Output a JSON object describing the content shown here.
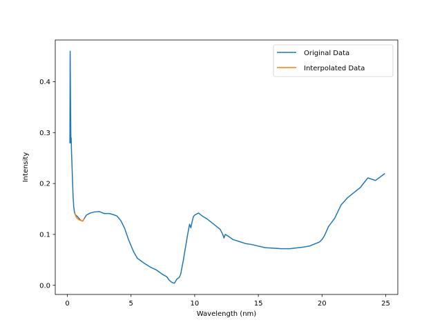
{
  "chart_data": {
    "type": "line",
    "title": "",
    "xlabel": "Wavelength (nm)",
    "ylabel": "Intensity",
    "xlim": [
      -0.95,
      25.95
    ],
    "ylim": [
      -0.018,
      0.482
    ],
    "xticks": [
      0,
      5,
      10,
      15,
      20,
      25
    ],
    "yticks": [
      0.0,
      0.1,
      0.2,
      0.3,
      0.4
    ],
    "ytick_labels": [
      "0.0",
      "0.1",
      "0.2",
      "0.3",
      "0.4"
    ],
    "grid": false,
    "legend_position": "top-right",
    "series": [
      {
        "name": "Original Data",
        "color": "#1f77b4",
        "x": [
          0.2,
          0.22,
          0.25,
          0.28,
          0.3,
          0.33,
          0.36,
          0.4,
          0.45,
          0.5,
          0.55,
          0.6,
          0.7,
          0.8,
          0.9,
          1.0,
          1.1,
          1.2,
          1.3,
          1.5,
          1.8,
          2.1,
          2.5,
          2.9,
          3.3,
          3.6,
          3.9,
          4.2,
          4.5,
          4.8,
          5.2,
          5.5,
          6.0,
          6.5,
          7.0,
          7.5,
          7.8,
          8.0,
          8.2,
          8.4,
          8.6,
          8.8,
          8.9,
          9.0,
          9.1,
          9.2,
          9.3,
          9.4,
          9.5,
          9.6,
          9.7,
          9.8,
          9.9,
          10.0,
          10.3,
          10.6,
          11.0,
          11.5,
          12.0,
          12.2,
          12.3,
          12.4,
          12.6,
          13.0,
          13.5,
          14.0,
          14.5,
          15.5,
          16.8,
          17.5,
          18.5,
          19.0,
          19.5,
          19.8,
          20.0,
          20.2,
          20.5,
          21.0,
          21.5,
          22.0,
          23.0,
          23.6,
          24.2,
          24.9
        ],
        "y": [
          0.28,
          0.46,
          0.36,
          0.28,
          0.29,
          0.26,
          0.24,
          0.21,
          0.175,
          0.155,
          0.145,
          0.14,
          0.137,
          0.135,
          0.132,
          0.129,
          0.127,
          0.126,
          0.13,
          0.138,
          0.142,
          0.144,
          0.145,
          0.141,
          0.141,
          0.139,
          0.136,
          0.127,
          0.112,
          0.09,
          0.066,
          0.053,
          0.044,
          0.036,
          0.03,
          0.021,
          0.017,
          0.01,
          0.006,
          0.004,
          0.012,
          0.016,
          0.022,
          0.035,
          0.048,
          0.063,
          0.078,
          0.093,
          0.107,
          0.12,
          0.113,
          0.125,
          0.135,
          0.138,
          0.142,
          0.136,
          0.13,
          0.12,
          0.11,
          0.1,
          0.093,
          0.1,
          0.097,
          0.09,
          0.086,
          0.082,
          0.08,
          0.074,
          0.072,
          0.072,
          0.075,
          0.077,
          0.082,
          0.085,
          0.09,
          0.098,
          0.115,
          0.132,
          0.158,
          0.172,
          0.192,
          0.211,
          0.206,
          0.219
        ]
      },
      {
        "name": "Interpolated Data",
        "color": "#ff7f0e",
        "x": [
          0.6,
          0.7,
          0.8,
          0.9,
          1.0,
          1.1,
          1.2,
          1.3
        ],
        "y": [
          0.14,
          0.134,
          0.131,
          0.129,
          0.128,
          0.127,
          0.126,
          0.13
        ]
      }
    ]
  }
}
